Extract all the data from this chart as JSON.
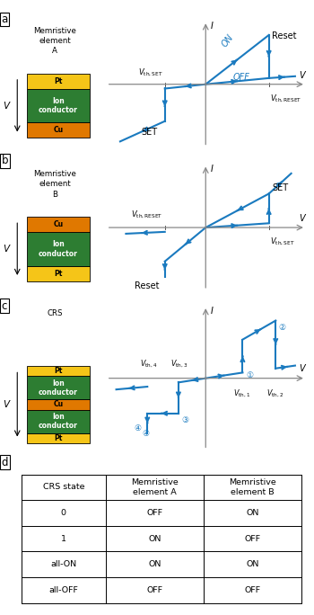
{
  "blue": "#1a7abf",
  "gray_axis": "#888888",
  "pt_color": "#f5c518",
  "ion_color": "#2d7d32",
  "cu_color": "#e07800",
  "text_color": "#000000",
  "panel_a": {
    "label": "a",
    "title": "Memristive\nelement\nA",
    "layers": [
      "Pt",
      "Ion\nconductor",
      "Cu"
    ],
    "layer_colors": [
      "#f5c518",
      "#2d7d32",
      "#e07800"
    ]
  },
  "panel_b": {
    "label": "b",
    "title": "Memristive\nelement\nB",
    "layers": [
      "Cu",
      "Ion\nconductor",
      "Pt"
    ],
    "layer_colors": [
      "#e07800",
      "#2d7d32",
      "#f5c518"
    ]
  },
  "panel_c": {
    "label": "c",
    "title": "CRS",
    "layers": [
      "Pt",
      "Ion\nconductor",
      "Cu",
      "Ion\nconductor",
      "Pt"
    ],
    "layer_colors": [
      "#f5c518",
      "#2d7d32",
      "#e07800",
      "#2d7d32",
      "#f5c518"
    ]
  },
  "panel_d": {
    "label": "d",
    "table_headers": [
      "CRS state",
      "Memristive\nelement A",
      "Memristive\nelement B"
    ],
    "table_rows": [
      [
        "0",
        "OFF",
        "ON"
      ],
      [
        "1",
        "ON",
        "OFF"
      ],
      [
        "all-ON",
        "ON",
        "ON"
      ],
      [
        "all-OFF",
        "OFF",
        "OFF"
      ]
    ]
  }
}
